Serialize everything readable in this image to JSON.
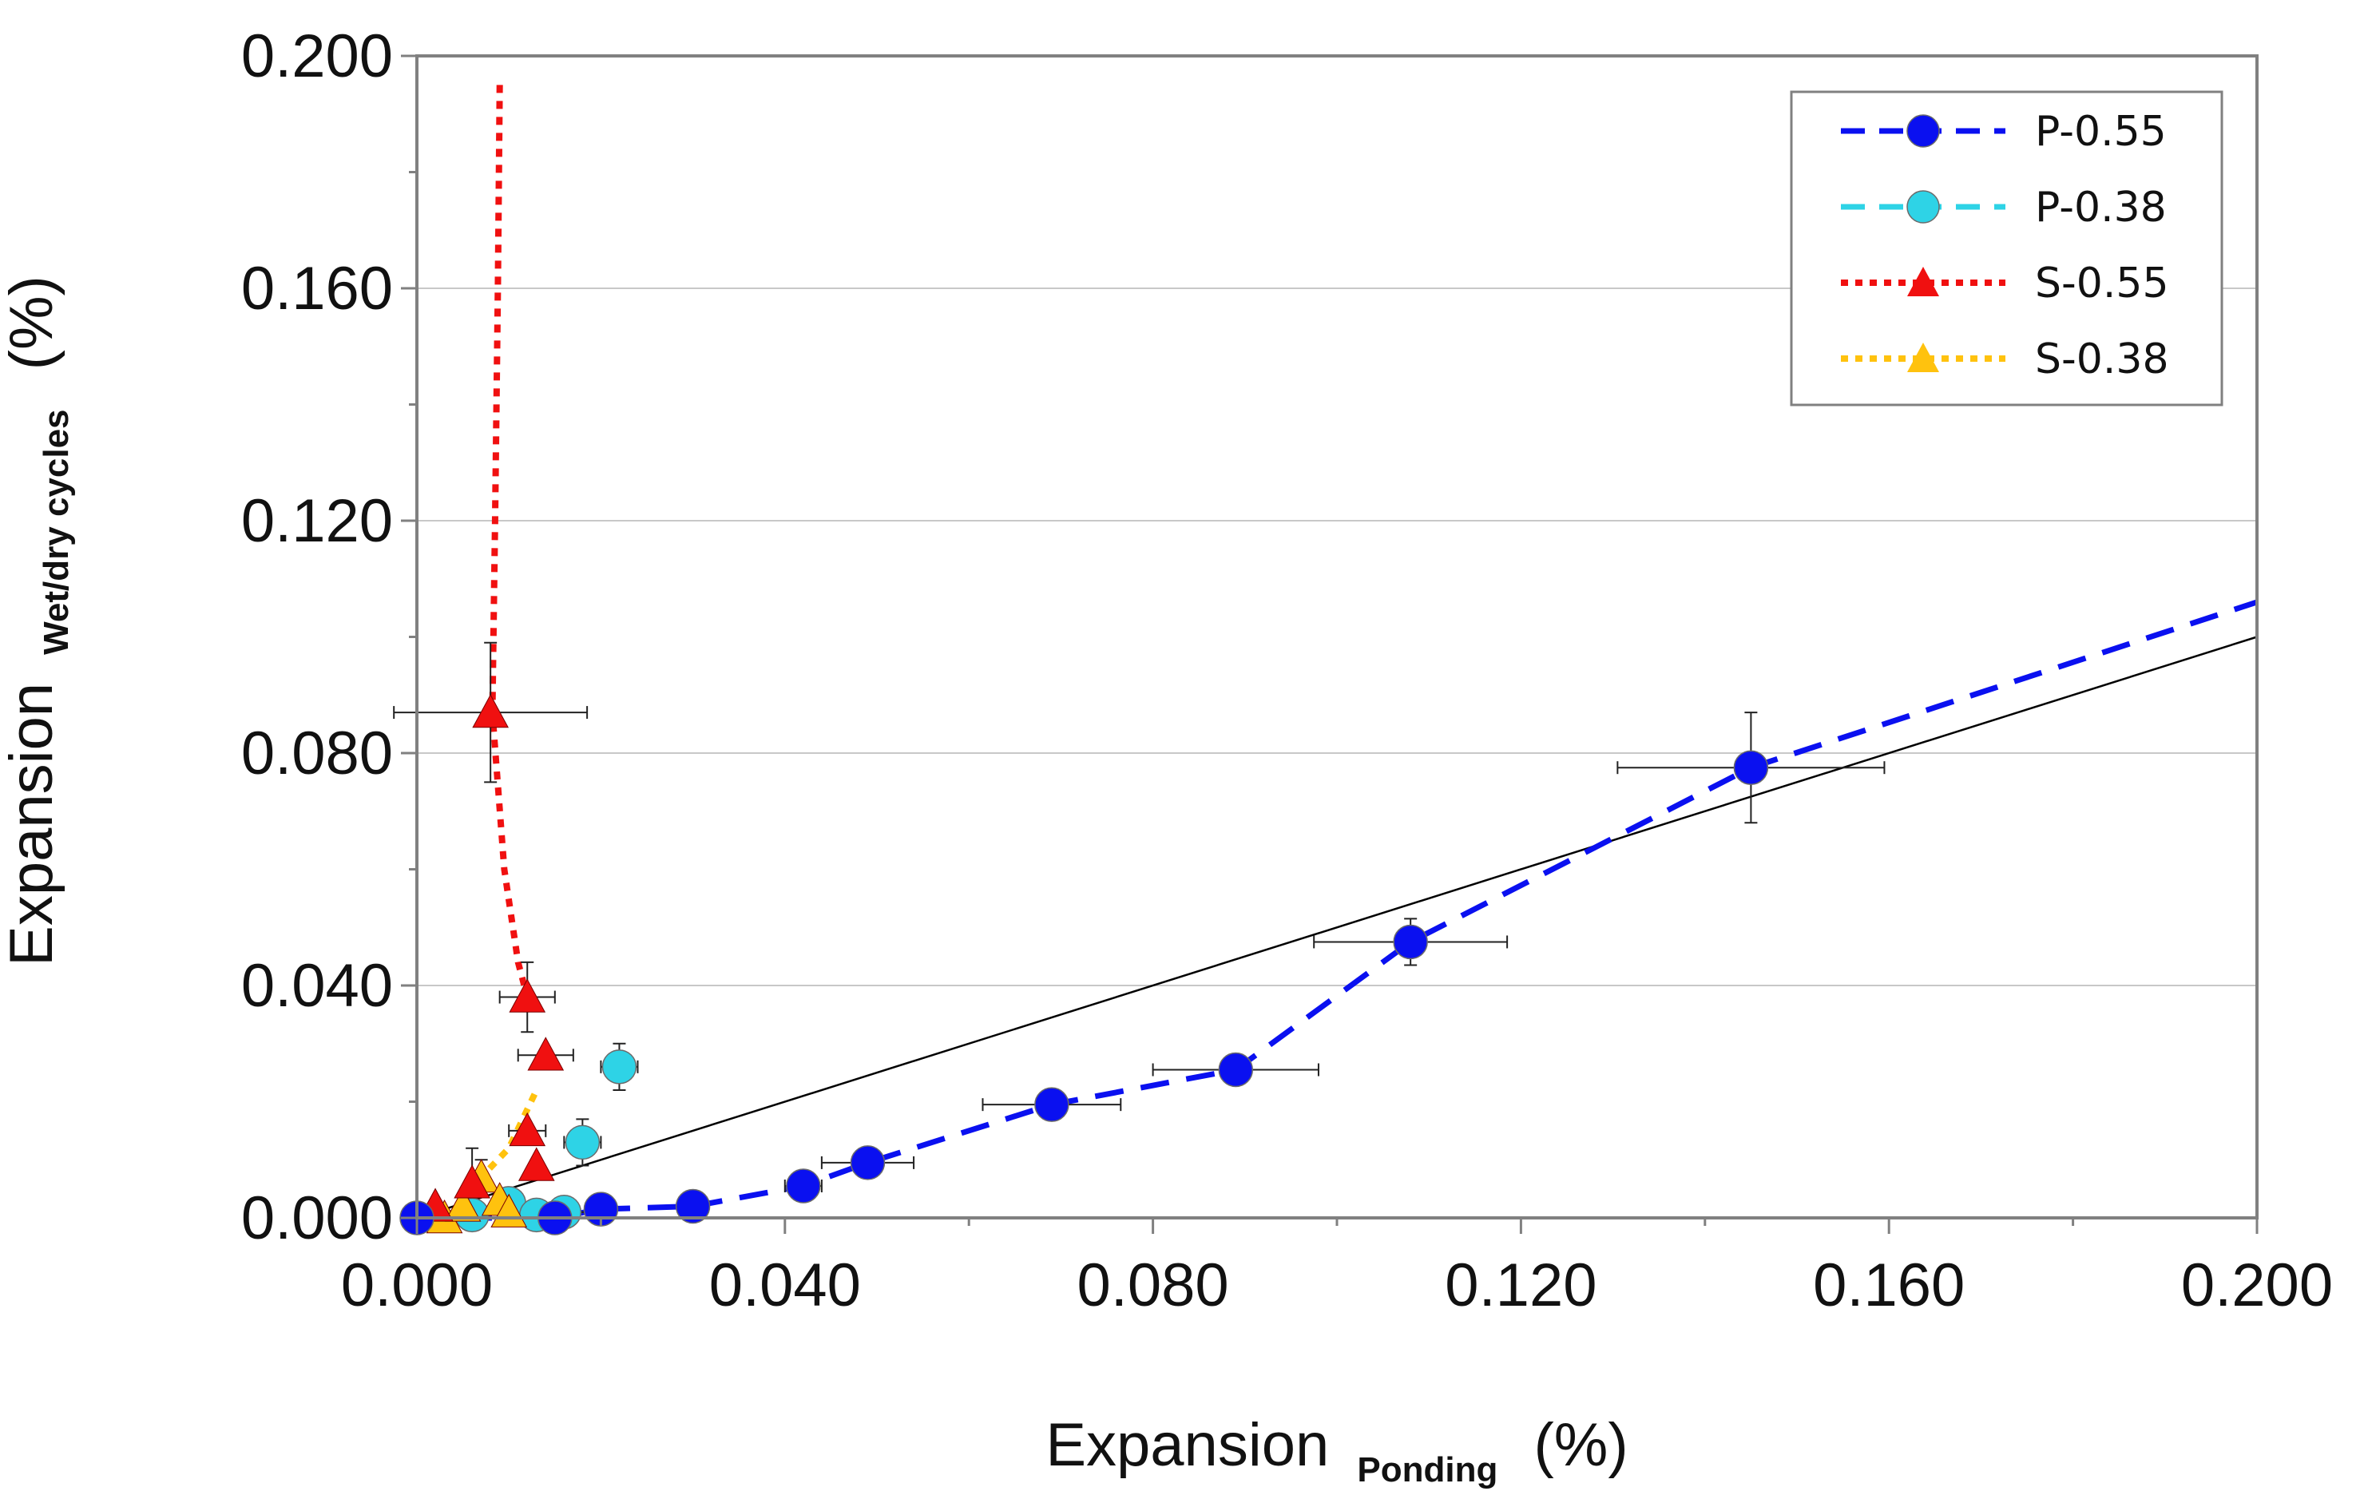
{
  "chart_data": {
    "type": "scatter",
    "title": "",
    "xlabel": {
      "main": "Expansion",
      "sub": "Ponding",
      "unit": "(%)"
    },
    "ylabel": {
      "main": "Expansion",
      "sub": "Wet/dry cycles",
      "unit": "(%)"
    },
    "xlim": [
      0,
      0.2
    ],
    "ylim": [
      0,
      0.2
    ],
    "x_ticks": [
      "0.000",
      "0.040",
      "0.080",
      "0.120",
      "0.160",
      "0.200"
    ],
    "y_ticks": [
      "0.000",
      "0.040",
      "0.080",
      "0.120",
      "0.160",
      "0.200"
    ],
    "grid": "horizontal",
    "legend_position": "top-right",
    "series": [
      {
        "name": "P-0.55",
        "color": "#0a10f0",
        "marker": "circle",
        "line": "dashed",
        "points": [
          {
            "x": 0.0,
            "y": 0.0
          },
          {
            "x": 0.015,
            "y": 0.0
          },
          {
            "x": 0.02,
            "y": 0.0015
          },
          {
            "x": 0.03,
            "y": 0.002
          },
          {
            "x": 0.042,
            "y": 0.0055,
            "xerr": 0.002
          },
          {
            "x": 0.049,
            "y": 0.0095,
            "xerr": 0.005
          },
          {
            "x": 0.069,
            "y": 0.0195,
            "xerr": 0.0075
          },
          {
            "x": 0.089,
            "y": 0.0255,
            "xerr": 0.009
          },
          {
            "x": 0.108,
            "y": 0.0475,
            "xerr": 0.0105,
            "yerr": 0.004
          },
          {
            "x": 0.145,
            "y": 0.0775,
            "xerr": 0.0145,
            "yerr": 0.0095
          }
        ],
        "trend": [
          {
            "x": 0.0,
            "y": 0.0
          },
          {
            "x": 0.015,
            "y": 0.0
          },
          {
            "x": 0.02,
            "y": 0.0015
          },
          {
            "x": 0.03,
            "y": 0.002
          },
          {
            "x": 0.042,
            "y": 0.0055
          },
          {
            "x": 0.049,
            "y": 0.0095
          },
          {
            "x": 0.069,
            "y": 0.0195
          },
          {
            "x": 0.089,
            "y": 0.0255
          },
          {
            "x": 0.108,
            "y": 0.0475
          },
          {
            "x": 0.145,
            "y": 0.0775
          },
          {
            "x": 0.2,
            "y": 0.106
          }
        ]
      },
      {
        "name": "P-0.38",
        "color": "#2ed3e6",
        "marker": "circle",
        "line": "dashed",
        "points": [
          {
            "x": 0.006,
            "y": 0.0005
          },
          {
            "x": 0.01,
            "y": 0.0025
          },
          {
            "x": 0.013,
            "y": 0.0005
          },
          {
            "x": 0.016,
            "y": 0.001,
            "xerr": 0.003
          },
          {
            "x": 0.018,
            "y": 0.013,
            "xerr": 0.002,
            "yerr": 0.004
          },
          {
            "x": 0.022,
            "y": 0.026,
            "xerr": 0.002,
            "yerr": 0.004
          }
        ],
        "trend": []
      },
      {
        "name": "S-0.55",
        "color": "#f01010",
        "marker": "triangle",
        "line": "dotted",
        "points": [
          {
            "x": 0.002,
            "y": 0.002
          },
          {
            "x": 0.006,
            "y": 0.006,
            "yerr": 0.006
          },
          {
            "x": 0.008,
            "y": 0.087,
            "xerr": 0.0105,
            "yerr": 0.012
          },
          {
            "x": 0.012,
            "y": 0.038,
            "xerr": 0.003,
            "yerr": 0.006
          },
          {
            "x": 0.012,
            "y": 0.015,
            "xerr": 0.002
          },
          {
            "x": 0.013,
            "y": 0.009
          },
          {
            "x": 0.014,
            "y": 0.028,
            "xerr": 0.003
          }
        ],
        "trend": [
          {
            "x": 0.009,
            "y": 0.195
          },
          {
            "x": 0.0088,
            "y": 0.16
          },
          {
            "x": 0.0085,
            "y": 0.12
          },
          {
            "x": 0.0082,
            "y": 0.087
          },
          {
            "x": 0.0095,
            "y": 0.06
          },
          {
            "x": 0.011,
            "y": 0.044
          },
          {
            "x": 0.012,
            "y": 0.038
          }
        ]
      },
      {
        "name": "S-0.38",
        "color": "#ffc20e",
        "marker": "triangle",
        "line": "dotted",
        "points": [
          {
            "x": 0.003,
            "y": 0.0
          },
          {
            "x": 0.005,
            "y": 0.002
          },
          {
            "x": 0.007,
            "y": 0.007,
            "yerr": 0.003
          },
          {
            "x": 0.009,
            "y": 0.003
          },
          {
            "x": 0.01,
            "y": 0.001
          }
        ],
        "trend": [
          {
            "x": 0.0,
            "y": 0.0
          },
          {
            "x": 0.003,
            "y": 0.0
          },
          {
            "x": 0.005,
            "y": 0.002
          },
          {
            "x": 0.007,
            "y": 0.007
          },
          {
            "x": 0.01,
            "y": 0.012
          },
          {
            "x": 0.013,
            "y": 0.022
          }
        ]
      }
    ],
    "reference_line": {
      "name": "1:1 line",
      "color": "#000000",
      "points": [
        {
          "x": 0,
          "y": 0
        },
        {
          "x": 0.2,
          "y": 0.1
        }
      ]
    }
  }
}
